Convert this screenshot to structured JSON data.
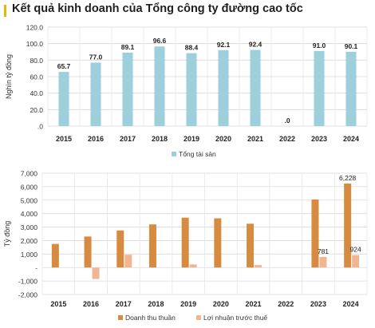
{
  "header": {
    "title": "Kết quả kinh doanh của Tổng công ty đường cao tốc"
  },
  "colors": {
    "accent": "#f0b400",
    "total_assets": "#9ecfdc",
    "revenue": "#d68b41",
    "pretax_profit": "#f2b591"
  },
  "chart_data": [
    {
      "type": "bar",
      "categories": [
        "2015",
        "2016",
        "2017",
        "2018",
        "2019",
        "2020",
        "2021",
        "2022",
        "2023",
        "2024"
      ],
      "series": [
        {
          "name": "Tổng tài sản",
          "values": [
            65.7,
            77.0,
            89.1,
            96.6,
            88.4,
            92.1,
            92.4,
            0,
            91.0,
            90.1
          ],
          "labels": [
            "65.7",
            "77.0",
            "89.1",
            "96.6",
            "88.4",
            "92.1",
            "92.4",
            ".0",
            "91.0",
            "90.1"
          ]
        }
      ],
      "ylabel": "Nghìn tỷ đồng",
      "ylim": [
        0,
        120
      ],
      "yticks": [
        0,
        20,
        40,
        60,
        80,
        100,
        120
      ],
      "ytick_labels": [
        ".0",
        "20.0",
        "40.0",
        "60.0",
        "80.0",
        "100.0",
        "120.0"
      ],
      "grid": true,
      "legend": "bottom"
    },
    {
      "type": "bar",
      "categories": [
        "2015",
        "2016",
        "2017",
        "2018",
        "2019",
        "2020",
        "2021",
        "2022",
        "2023",
        "2024"
      ],
      "series": [
        {
          "name": "Doanh thu thuần",
          "values": [
            1750,
            2300,
            2750,
            3200,
            3700,
            3650,
            3250,
            0,
            5050,
            6228
          ],
          "labels": [
            "",
            "",
            "",
            "",
            "",
            "",
            "",
            "",
            "",
            "6,228"
          ]
        },
        {
          "name": "Lợi nhuận trước thuế",
          "values": [
            0,
            -850,
            950,
            0,
            230,
            0,
            180,
            0,
            781,
            924
          ],
          "labels": [
            "",
            "",
            "",
            "",
            "",
            "",
            "",
            "",
            "781",
            "924"
          ]
        }
      ],
      "ylabel": "Tỷ đồng",
      "ylim": [
        -2000,
        7000
      ],
      "yticks": [
        -2000,
        -1000,
        0,
        1000,
        2000,
        3000,
        4000,
        5000,
        6000,
        7000
      ],
      "ytick_labels": [
        "-2,000",
        "-1,000",
        "-",
        "1,000",
        "2,000",
        "3,000",
        "4,000",
        "5,000",
        "6,000",
        "7,000"
      ],
      "grid": true,
      "legend": "bottom"
    }
  ]
}
